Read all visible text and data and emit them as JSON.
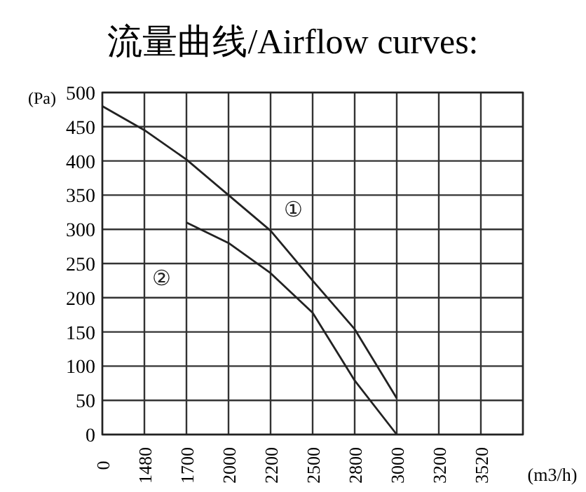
{
  "chart_data": {
    "type": "line",
    "title": "流量曲线/Airflow curves:",
    "ylabel": "(Pa)",
    "xlabel": "(m3/h)",
    "categories": [
      "0",
      "1480",
      "1700",
      "2000",
      "2200",
      "2500",
      "2800",
      "3000",
      "3200",
      "3520",
      null
    ],
    "ylim": [
      0,
      500
    ],
    "yticks": [
      0,
      50,
      100,
      150,
      200,
      250,
      300,
      350,
      400,
      450,
      500
    ],
    "grid": true,
    "marker": "none",
    "line_style": "solid",
    "series": [
      {
        "name": "①",
        "color": "#222222",
        "values": [
          480,
          445,
          402,
          350,
          298,
          225,
          154,
          53,
          null,
          null,
          null
        ]
      },
      {
        "name": "②",
        "color": "#222222",
        "values": [
          null,
          null,
          310,
          280,
          236,
          178,
          79,
          0,
          null,
          null,
          null
        ]
      }
    ]
  }
}
